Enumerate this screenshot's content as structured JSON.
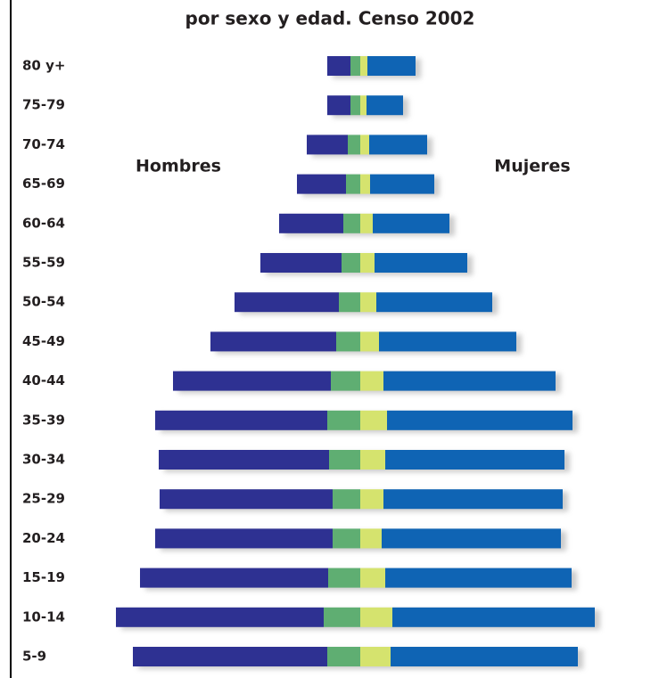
{
  "chart_data": {
    "type": "pyramid",
    "title": "por sexo y edad. Censo 2002",
    "left_label": "Hombres",
    "right_label": "Mujeres",
    "categories": [
      "80 y+",
      "75-79",
      "70-74",
      "65-69",
      "60-64",
      "55-59",
      "50-54",
      "45-49",
      "40-44",
      "35-39",
      "30-34",
      "25-29",
      "20-24",
      "15-19",
      "10-14",
      "5-9"
    ],
    "series": [
      {
        "side": "left",
        "color": "#5fae72",
        "values": [
          11,
          11,
          14,
          16,
          19,
          21,
          24,
          27,
          33,
          37,
          35,
          31,
          31,
          36,
          41,
          37
        ]
      },
      {
        "side": "left",
        "color": "#2e3192",
        "values": [
          26,
          26,
          46,
          55,
          72,
          91,
          117,
          141,
          177,
          193,
          191,
          194,
          199,
          211,
          233,
          218
        ]
      },
      {
        "side": "right",
        "color": "#d5e36e",
        "values": [
          8,
          7,
          10,
          11,
          14,
          16,
          18,
          21,
          26,
          30,
          28,
          26,
          24,
          28,
          36,
          34
        ]
      },
      {
        "side": "right",
        "color": "#0f64b4",
        "values": [
          54,
          41,
          65,
          72,
          86,
          104,
          130,
          154,
          193,
          208,
          201,
          201,
          201,
          209,
          227,
          210
        ]
      }
    ]
  }
}
